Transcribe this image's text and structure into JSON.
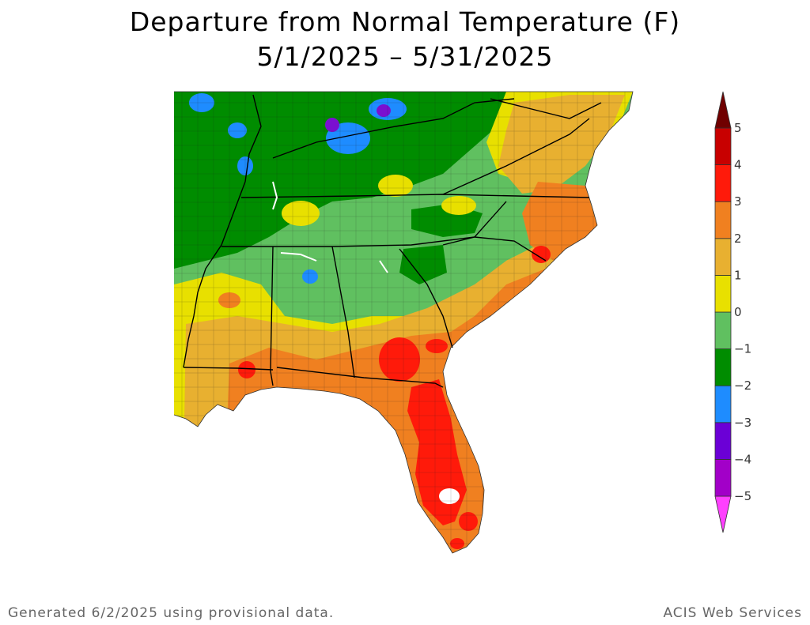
{
  "title": {
    "line1": "Departure from Normal Temperature (F)",
    "line2": "5/1/2025 – 5/31/2025"
  },
  "legend": {
    "labels": [
      "5",
      "4",
      "3",
      "2",
      "1",
      "0",
      "−1",
      "−2",
      "−3",
      "−4",
      "−5"
    ],
    "colors": [
      "#e2006a",
      "#a200c8",
      "#6b00d6",
      "#1e8cff",
      "#008c00",
      "#60c060",
      "#e8e000",
      "#e8b030",
      "#f08020",
      "#ff1a0a",
      "#c80000",
      "#700000"
    ]
  },
  "footer": {
    "generated": "Generated 6/2/2025 using provisional data.",
    "source": "ACIS Web Services"
  },
  "palette": {
    "minus3": "#1e8cff",
    "minus2": "#008c00",
    "minus1": "#60c060",
    "zero_to_1": "#e8e000",
    "one_to_2": "#e8b030",
    "two_to_3": "#f08020",
    "three_to_4": "#ff1a0a",
    "purple": "#7a10d0"
  }
}
